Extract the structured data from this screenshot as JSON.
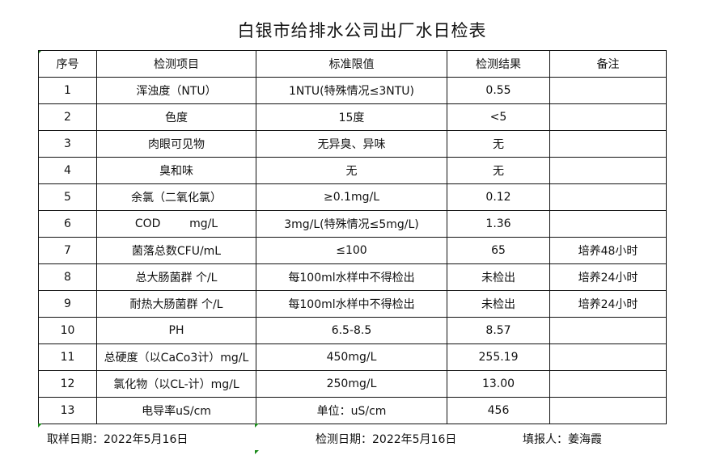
{
  "title": "白银市给排水公司出厂水日检表",
  "headers": [
    "序号",
    "检测项目",
    "标准限值",
    "检测结果",
    "备注"
  ],
  "rows": [
    [
      "1",
      "浑浊度（NTU）",
      "1NTU(特殊情况≤3NTU)",
      "0.55",
      ""
    ],
    [
      "2",
      "色度",
      "15度",
      "<5",
      ""
    ],
    [
      "3",
      "肉眼可见物",
      "无异臭、异味",
      "无",
      ""
    ],
    [
      "4",
      "臭和味",
      "无",
      "无",
      ""
    ],
    [
      "5",
      "余氯（二氧化氯）",
      "≥0.1mg/L",
      "0.12",
      ""
    ],
    [
      "6",
      "COD        mg/L",
      "3mg/L(特殊情况≤5mg/L)",
      "1.36",
      ""
    ],
    [
      "7",
      "菌落总数CFU/mL",
      "≤100",
      "65",
      "培养48小时"
    ],
    [
      "8",
      "总大肠菌群 个/L",
      "每100ml水样中不得检出",
      "未检出",
      "培养24小时"
    ],
    [
      "9",
      "耐热大肠菌群 个/L",
      "每100ml水样中不得检出",
      "未检出",
      "培养24小时"
    ],
    [
      "10",
      "PH",
      "6.5-8.5",
      "8.57",
      ""
    ],
    [
      "11",
      "总硬度（以CaCo3计）mg/L",
      "450mg/L",
      "255.19",
      ""
    ],
    [
      "12",
      "氯化物（以CL-计）mg/L",
      "250mg/L",
      "13.00",
      ""
    ],
    [
      "13",
      "电导率uS/cm",
      "单位：uS/cm",
      "456",
      ""
    ]
  ],
  "footer": {
    "sample_date": "取样日期：2022年5月16日",
    "test_date": "检测日期：2022年5月16日",
    "reporter": "填报人：姜海霞"
  }
}
